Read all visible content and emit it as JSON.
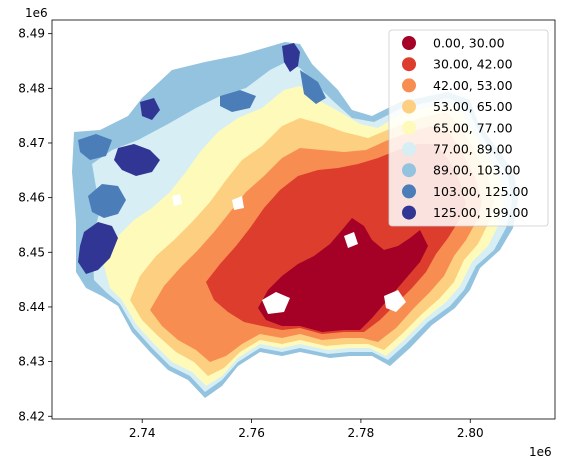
{
  "chart_data": {
    "type": "heatmap",
    "subtype": "choropleth-map",
    "title": "",
    "xlabel": "",
    "ylabel": "",
    "x_offset_label": "1e6",
    "y_offset_label": "1e6",
    "xlim": [
      2.7235,
      2.8155
    ],
    "ylim": [
      8.4195,
      8.4925
    ],
    "x_ticks": [
      2.74,
      2.76,
      2.78,
      2.8
    ],
    "x_tick_labels": [
      "2.74",
      "2.76",
      "2.78",
      "2.80"
    ],
    "y_ticks": [
      8.42,
      8.43,
      8.44,
      8.45,
      8.46,
      8.47,
      8.48,
      8.49
    ],
    "y_tick_labels": [
      "8.42",
      "8.43",
      "8.44",
      "8.45",
      "8.46",
      "8.47",
      "8.48",
      "8.49"
    ],
    "grid": false,
    "legend_position": "upper right",
    "classes": [
      {
        "label": "  0.00,  30.00",
        "color": "#a50026"
      },
      {
        "label": " 30.00,  42.00",
        "color": "#dd3d2d"
      },
      {
        "label": " 42.00,  53.00",
        "color": "#f88d52"
      },
      {
        "label": " 53.00,  65.00",
        "color": "#fdd081"
      },
      {
        "label": " 65.00,  77.00",
        "color": "#fefbba"
      },
      {
        "label": " 77.00,  89.00",
        "color": "#d7eef5"
      },
      {
        "label": " 89.00, 103.00",
        "color": "#93c3df"
      },
      {
        "label": "103.00, 125.00",
        "color": "#4b7db8"
      },
      {
        "label": "125.00, 199.00",
        "color": "#313695"
      }
    ]
  }
}
